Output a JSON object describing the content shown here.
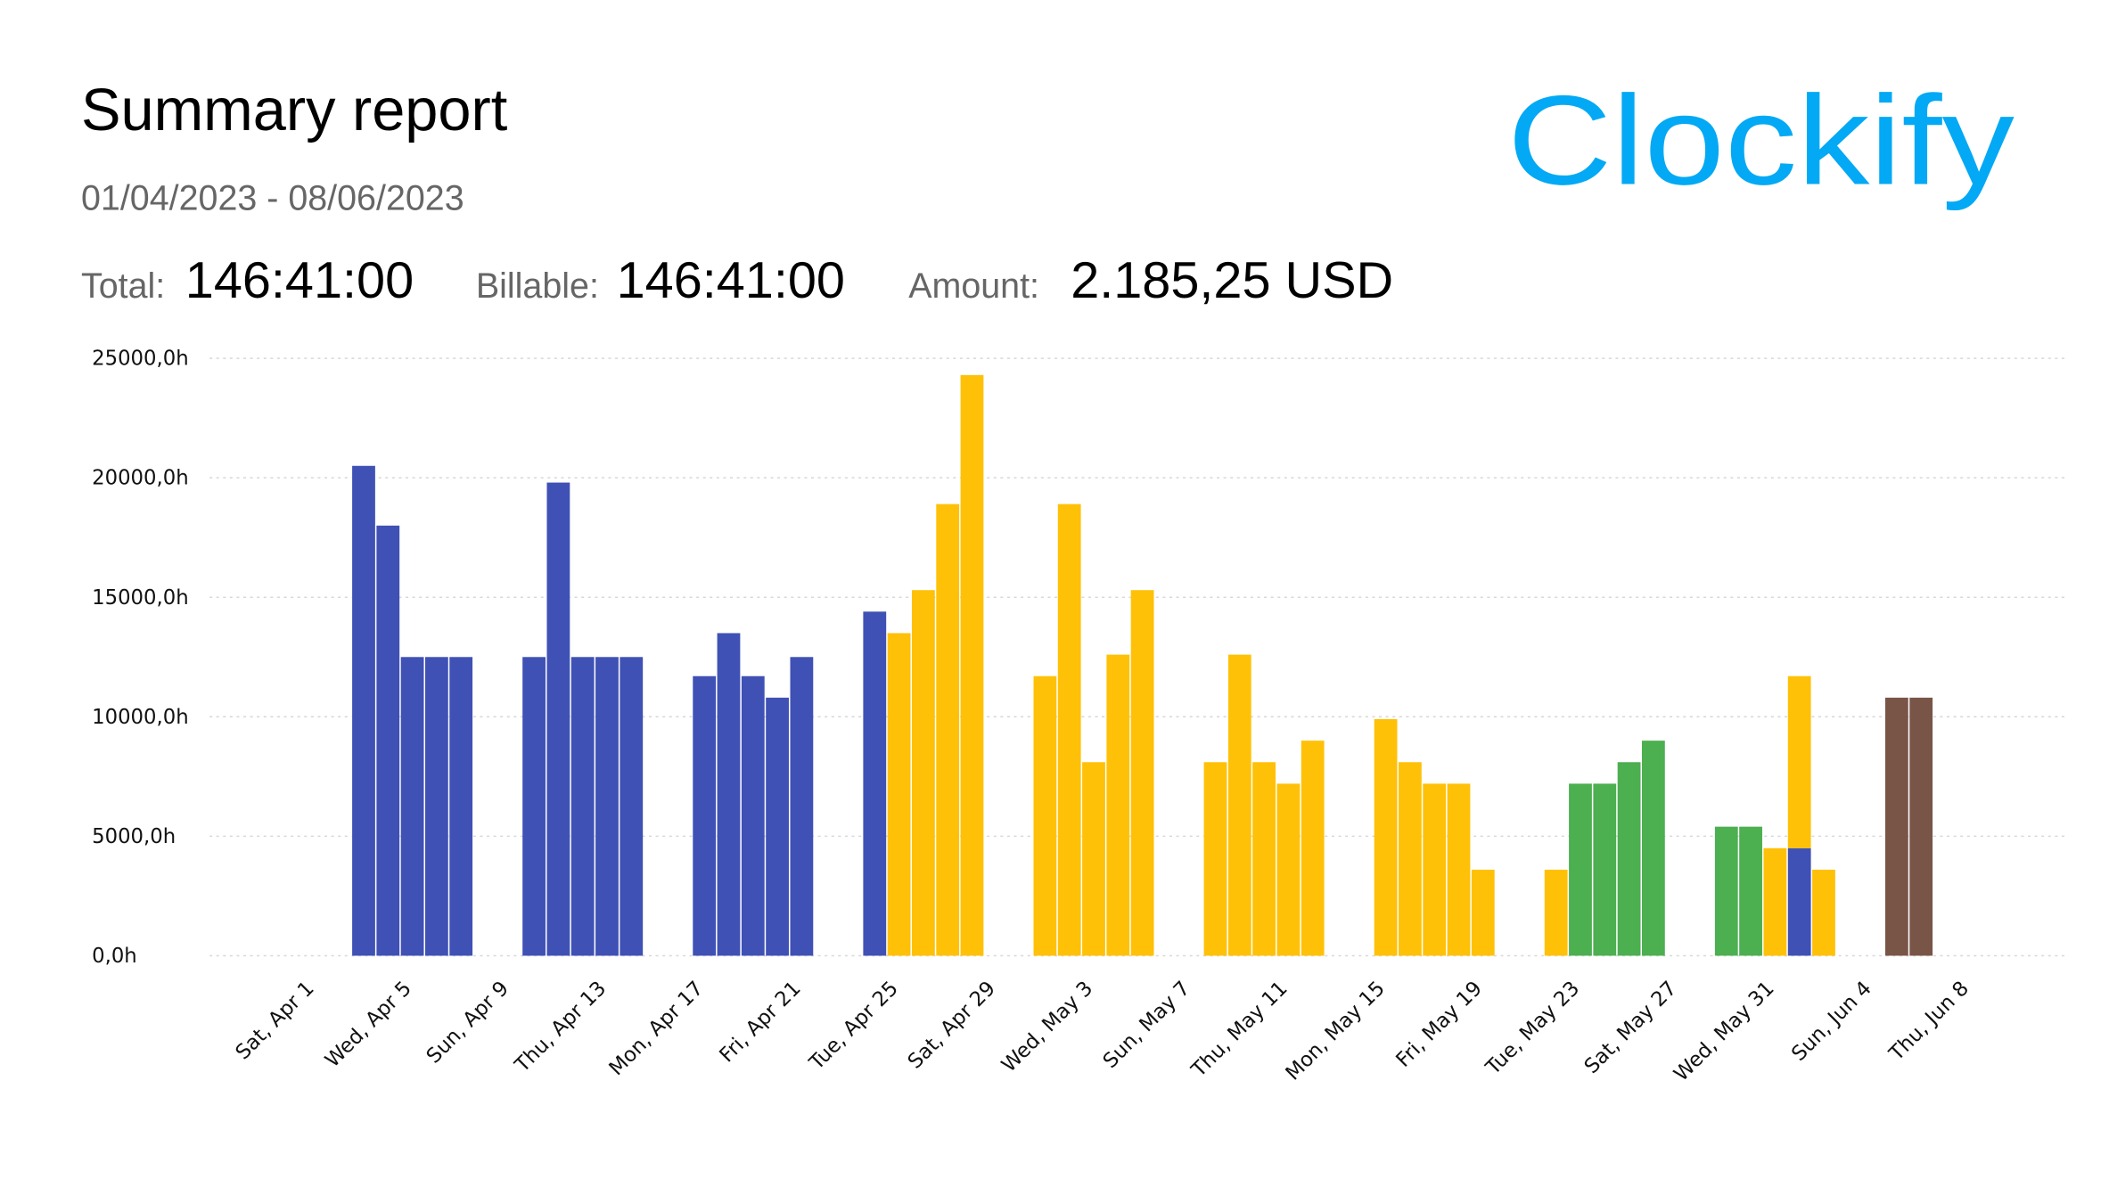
{
  "header": {
    "title": "Summary report",
    "date_range": "01/04/2023 - 08/06/2023",
    "total_label": "Total:",
    "total_value": "146:41:00",
    "billable_label": "Billable:",
    "billable_value": "146:41:00",
    "amount_label": "Amount:",
    "amount_value": "2.185,25 USD",
    "logo": "Clockify"
  },
  "chart_data": {
    "type": "stacked_bar",
    "grid": true,
    "ylim": [
      0,
      25000
    ],
    "yticks": [
      {
        "value": 0,
        "label": "0,0h"
      },
      {
        "value": 5000,
        "label": "5000,0h"
      },
      {
        "value": 10000,
        "label": "10000,0h"
      },
      {
        "value": 15000,
        "label": "15000,0h"
      },
      {
        "value": 20000,
        "label": "20000,0h"
      },
      {
        "value": 25000,
        "label": "25000,0h"
      }
    ],
    "categories": [
      "Sat, Apr 1",
      null,
      null,
      null,
      "Wed, Apr 5",
      null,
      null,
      null,
      "Sun, Apr 9",
      null,
      null,
      null,
      "Thu, Apr 13",
      null,
      null,
      null,
      "Mon, Apr 17",
      null,
      null,
      null,
      "Fri, Apr 21",
      null,
      null,
      null,
      "Tue, Apr 25",
      null,
      null,
      null,
      "Sat, Apr 29",
      null,
      null,
      null,
      "Wed, May 3",
      null,
      null,
      null,
      "Sun, May 7",
      null,
      null,
      null,
      "Thu, May 11",
      null,
      null,
      null,
      "Mon, May 15",
      null,
      null,
      null,
      "Fri, May 19",
      null,
      null,
      null,
      "Tue, May 23",
      null,
      null,
      null,
      "Sat, May 27",
      null,
      null,
      null,
      "Wed, May 31",
      null,
      null,
      null,
      "Sun, Jun 4",
      null,
      null,
      null,
      "Thu, Jun 8"
    ],
    "series": [
      {
        "color": "#3f51b5",
        "values": [
          null,
          null,
          20500,
          18000,
          12500,
          12500,
          12500,
          null,
          null,
          12500,
          19800,
          12500,
          12500,
          12500,
          null,
          null,
          11700,
          13500,
          11700,
          10800,
          12500,
          null,
          null,
          14400,
          null,
          null,
          null,
          null,
          null,
          null,
          null,
          null,
          null,
          null,
          null,
          null,
          null,
          null,
          null,
          null,
          null,
          null,
          null,
          null,
          null,
          null,
          null,
          null,
          null,
          null,
          null,
          null,
          null,
          null,
          null,
          null,
          null,
          null,
          null,
          null,
          null,
          4500,
          null,
          null,
          null,
          null,
          null,
          null,
          null
        ]
      },
      {
        "color": "#ffc107",
        "values": [
          null,
          null,
          null,
          null,
          null,
          null,
          null,
          null,
          null,
          null,
          null,
          null,
          null,
          null,
          null,
          null,
          null,
          null,
          null,
          null,
          null,
          null,
          null,
          null,
          13500,
          15300,
          18900,
          24300,
          null,
          null,
          11700,
          18900,
          8100,
          12600,
          15300,
          null,
          null,
          8100,
          12600,
          8100,
          7200,
          9000,
          null,
          null,
          9900,
          8100,
          7200,
          7200,
          3600,
          null,
          null,
          3600,
          null,
          null,
          null,
          null,
          null,
          null,
          null,
          null,
          4500,
          7200,
          3600,
          null,
          null,
          null,
          null,
          null,
          null
        ]
      },
      {
        "color": "#4caf50",
        "values": [
          null,
          null,
          null,
          null,
          null,
          null,
          null,
          null,
          null,
          null,
          null,
          null,
          null,
          null,
          null,
          null,
          null,
          null,
          null,
          null,
          null,
          null,
          null,
          null,
          null,
          null,
          null,
          null,
          null,
          null,
          null,
          null,
          null,
          null,
          null,
          null,
          null,
          null,
          null,
          null,
          null,
          null,
          null,
          null,
          null,
          null,
          null,
          null,
          null,
          null,
          null,
          null,
          7200,
          7200,
          8100,
          9000,
          null,
          null,
          5400,
          5400,
          null,
          null,
          null,
          null,
          null,
          null,
          null,
          null,
          null
        ]
      },
      {
        "color": "#795548",
        "values": [
          null,
          null,
          null,
          null,
          null,
          null,
          null,
          null,
          null,
          null,
          null,
          null,
          null,
          null,
          null,
          null,
          null,
          null,
          null,
          null,
          null,
          null,
          null,
          null,
          null,
          null,
          null,
          null,
          null,
          null,
          null,
          null,
          null,
          null,
          null,
          null,
          null,
          null,
          null,
          null,
          null,
          null,
          null,
          null,
          null,
          null,
          null,
          null,
          null,
          null,
          null,
          null,
          null,
          null,
          null,
          null,
          null,
          null,
          null,
          null,
          null,
          null,
          null,
          null,
          null,
          10800,
          10800,
          null,
          null
        ]
      }
    ]
  }
}
